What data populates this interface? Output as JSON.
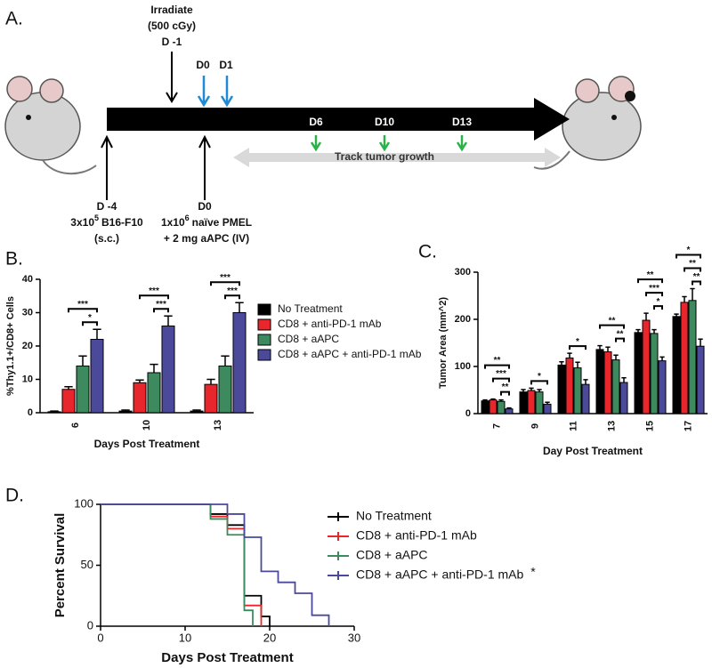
{
  "diagram": {
    "label": "A.",
    "irradiate": [
      "Irradiate",
      "(500 cGy)",
      "D -1"
    ],
    "doses": [
      "D0",
      "D1"
    ],
    "timepoints": [
      "D6",
      "D10",
      "D13"
    ],
    "track": "Track tumor growth",
    "tumor": {
      "day": "D -4",
      "cells": {
        "base": "3x10",
        "sup": "5",
        "rest": "B16-F10"
      },
      "route": "(s.c.)"
    },
    "transfer": {
      "day": "D0",
      "cells": {
        "base": "1x10",
        "sup": "6",
        "rest": "naïve PMEL"
      },
      "apc": "+ 2 mg aAPC (IV)"
    }
  },
  "chart_data": [
    {
      "type": "bar",
      "panel_label": "B.",
      "xlabel": "Days Post Treatment",
      "ylabel": "%Thy1.1+/CD8+ Cells",
      "categories": [
        "6",
        "10",
        "13"
      ],
      "ylim": [
        0,
        40
      ],
      "yticks": [
        0,
        10,
        20,
        30,
        40
      ],
      "legend": "right",
      "series": [
        {
          "name": "No Treatment",
          "color": "#000000",
          "values": [
            0.3,
            0.5,
            0.5
          ],
          "errors": [
            0.2,
            0.3,
            0.3
          ]
        },
        {
          "name": "CD8 + anti-PD-1 mAb",
          "color": "#e8262b",
          "values": [
            7,
            9,
            8.5
          ],
          "errors": [
            0.8,
            0.8,
            1.5
          ]
        },
        {
          "name": "CD8 + aAPC",
          "color": "#3d8a5e",
          "values": [
            14,
            12,
            14
          ],
          "errors": [
            3,
            2.5,
            3
          ]
        },
        {
          "name": "CD8 + aAPC + anti-PD-1 mAb",
          "color": "#4b4a9a",
          "values": [
            22,
            26,
            30
          ],
          "errors": [
            3,
            3,
            3
          ]
        }
      ],
      "significance": [
        [
          {
            "from": 2,
            "label": "*"
          },
          {
            "from": 1,
            "label": "***"
          }
        ],
        [
          {
            "from": 2,
            "label": "***"
          },
          {
            "from": 1,
            "label": "***"
          }
        ],
        [
          {
            "from": 2,
            "label": "***"
          },
          {
            "from": 1,
            "label": "***"
          }
        ]
      ]
    },
    {
      "type": "bar",
      "panel_label": "C.",
      "xlabel": "Day Post Treatment",
      "ylabel": "Tumor Area (mm^2)",
      "categories": [
        "7",
        "9",
        "11",
        "13",
        "15",
        "17"
      ],
      "ylim": [
        0,
        300
      ],
      "yticks": [
        0,
        100,
        200,
        300
      ],
      "series": [
        {
          "name": "No Treatment",
          "color": "#000000",
          "values": [
            27,
            46,
            103,
            136,
            172,
            206
          ],
          "errors": [
            2,
            5,
            7,
            8,
            6,
            5
          ]
        },
        {
          "name": "CD8 + anti-PD-1 mAb",
          "color": "#e8262b",
          "values": [
            29,
            49,
            118,
            131,
            198,
            236
          ],
          "errors": [
            2,
            5,
            10,
            10,
            15,
            12
          ]
        },
        {
          "name": "CD8 + aAPC",
          "color": "#3d8a5e",
          "values": [
            26,
            46,
            97,
            114,
            170,
            240
          ],
          "errors": [
            3,
            5,
            12,
            10,
            8,
            25
          ]
        },
        {
          "name": "CD8 + aAPC + anti-PD-1 mAb",
          "color": "#4b4a9a",
          "values": [
            10,
            20,
            62,
            66,
            112,
            143
          ],
          "errors": [
            2,
            4,
            10,
            10,
            8,
            15
          ]
        }
      ],
      "significance": [
        [
          {
            "from": 2,
            "label": "**"
          },
          {
            "from": 1,
            "label": "***"
          },
          {
            "from": 0,
            "label": "**"
          }
        ],
        [
          {
            "from": 1,
            "label": "*"
          }
        ],
        [
          {
            "from": 1,
            "label": "*"
          }
        ],
        [
          {
            "from": 2,
            "label": "**"
          },
          {
            "from": 0,
            "label": "**"
          }
        ],
        [
          {
            "from": 2,
            "label": "*"
          },
          {
            "from": 1,
            "label": "***"
          },
          {
            "from": 0,
            "label": "**"
          }
        ],
        [
          {
            "from": 2,
            "label": "**"
          },
          {
            "from": 1,
            "label": "**"
          },
          {
            "from": 0,
            "label": "*"
          }
        ]
      ]
    },
    {
      "type": "line",
      "step": true,
      "panel_label": "D.",
      "xlabel": "Days Post Treatment",
      "ylabel": "Percent Survival",
      "xlim": [
        0,
        30
      ],
      "xticks": [
        0,
        10,
        20,
        30
      ],
      "ylim": [
        0,
        100
      ],
      "yticks": [
        0,
        50,
        100
      ],
      "legend": "right",
      "series": [
        {
          "name": "No Treatment",
          "color": "#000000",
          "x": [
            0,
            13,
            15,
            17,
            19,
            20
          ],
          "values": [
            100,
            92,
            83,
            25,
            8,
            0
          ]
        },
        {
          "name": "CD8 + anti-PD-1 mAb",
          "color": "#e8262b",
          "x": [
            0,
            13,
            15,
            17,
            19
          ],
          "values": [
            100,
            90,
            80,
            17,
            0
          ]
        },
        {
          "name": "CD8 + aAPC",
          "color": "#3d8a5e",
          "x": [
            0,
            13,
            15,
            17,
            18
          ],
          "values": [
            100,
            88,
            75,
            13,
            0
          ]
        },
        {
          "name": "CD8 + aAPC + anti-PD-1 mAb",
          "color": "#4b4a9a",
          "annotation": "*",
          "x": [
            0,
            15,
            17,
            19,
            21,
            23,
            25,
            27
          ],
          "values": [
            100,
            92,
            73,
            45,
            36,
            27,
            9,
            0
          ]
        }
      ]
    }
  ]
}
